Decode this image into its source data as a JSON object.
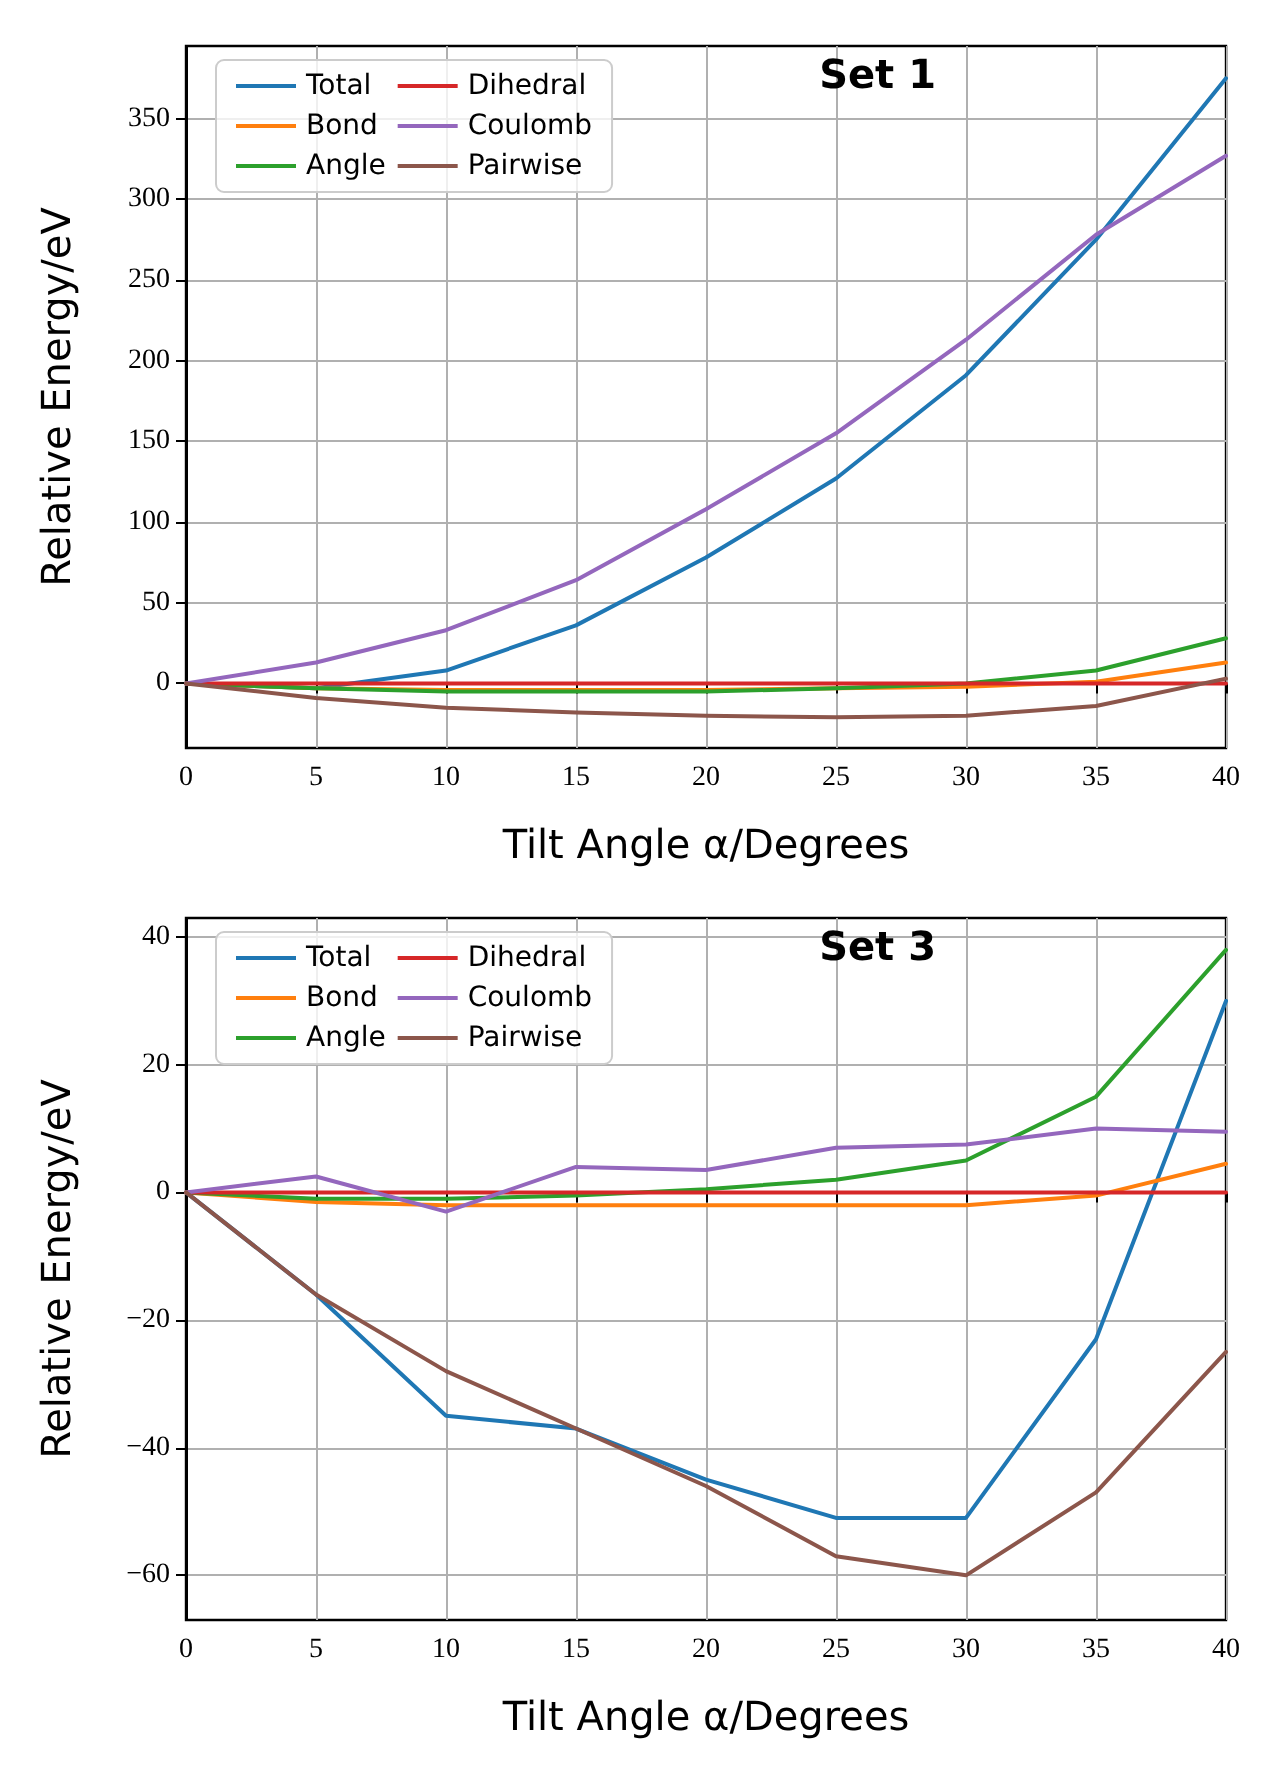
{
  "chart_data": [
    {
      "type": "line",
      "title": "Set 1",
      "xlabel": "Tilt Angle α/Degrees",
      "ylabel": "Relative Energy/eV",
      "x": [
        0,
        5,
        10,
        15,
        20,
        25,
        30,
        35,
        40
      ],
      "xlim": [
        0,
        40
      ],
      "xticks": [
        0,
        5,
        10,
        15,
        20,
        25,
        30,
        35,
        40
      ],
      "ylim": [
        -40,
        395
      ],
      "yticks": [
        0,
        50,
        100,
        150,
        200,
        250,
        300,
        350
      ],
      "grid": true,
      "legend": "top left",
      "series": [
        {
          "name": "Total",
          "color": "#1f77b4",
          "values": [
            0,
            -3,
            8,
            36,
            78,
            127,
            191,
            275,
            375
          ]
        },
        {
          "name": "Bond",
          "color": "#ff7f0e",
          "values": [
            0,
            -3,
            -4,
            -4,
            -4,
            -3,
            -2,
            1,
            13
          ]
        },
        {
          "name": "Angle",
          "color": "#2ca02c",
          "values": [
            0,
            -3,
            -5,
            -5,
            -5,
            -3,
            0,
            8,
            28
          ]
        },
        {
          "name": "Dihedral",
          "color": "#d62728",
          "values": [
            0,
            0,
            0,
            0,
            0,
            0,
            0,
            0,
            0
          ]
        },
        {
          "name": "Coulomb",
          "color": "#9467bd",
          "values": [
            0,
            13,
            33,
            64,
            108,
            155,
            213,
            278,
            327
          ]
        },
        {
          "name": "Pairwise",
          "color": "#8c564b",
          "values": [
            0,
            -9,
            -15,
            -18,
            -20,
            -21,
            -20,
            -14,
            3
          ]
        }
      ]
    },
    {
      "type": "line",
      "title": "Set 3",
      "xlabel": "Tilt Angle α/Degrees",
      "ylabel": "Relative Energy/eV",
      "x": [
        0,
        5,
        10,
        15,
        20,
        25,
        30,
        35,
        40
      ],
      "xlim": [
        0,
        40
      ],
      "xticks": [
        0,
        5,
        10,
        15,
        20,
        25,
        30,
        35,
        40
      ],
      "ylim": [
        -67,
        43
      ],
      "yticks": [
        -60,
        -40,
        -20,
        0,
        20,
        40
      ],
      "grid": true,
      "legend": "top left",
      "series": [
        {
          "name": "Total",
          "color": "#1f77b4",
          "values": [
            0,
            -16,
            -35,
            -37,
            -45,
            -51,
            -51,
            -23,
            30
          ]
        },
        {
          "name": "Bond",
          "color": "#ff7f0e",
          "values": [
            0,
            -1.5,
            -2,
            -2,
            -2,
            -2,
            -2,
            -0.5,
            4.5
          ]
        },
        {
          "name": "Angle",
          "color": "#2ca02c",
          "values": [
            0,
            -1,
            -1,
            -0.5,
            0.5,
            2,
            5,
            15,
            38
          ]
        },
        {
          "name": "Dihedral",
          "color": "#d62728",
          "values": [
            0,
            0,
            0,
            0,
            0,
            0,
            0,
            0,
            0
          ]
        },
        {
          "name": "Coulomb",
          "color": "#9467bd",
          "values": [
            0,
            2.5,
            -3,
            4,
            3.5,
            7,
            7.5,
            10,
            9.5
          ]
        },
        {
          "name": "Pairwise",
          "color": "#8c564b",
          "values": [
            0,
            -16,
            -28,
            -37,
            -46,
            -57,
            -60,
            -47,
            -25
          ]
        }
      ]
    }
  ]
}
